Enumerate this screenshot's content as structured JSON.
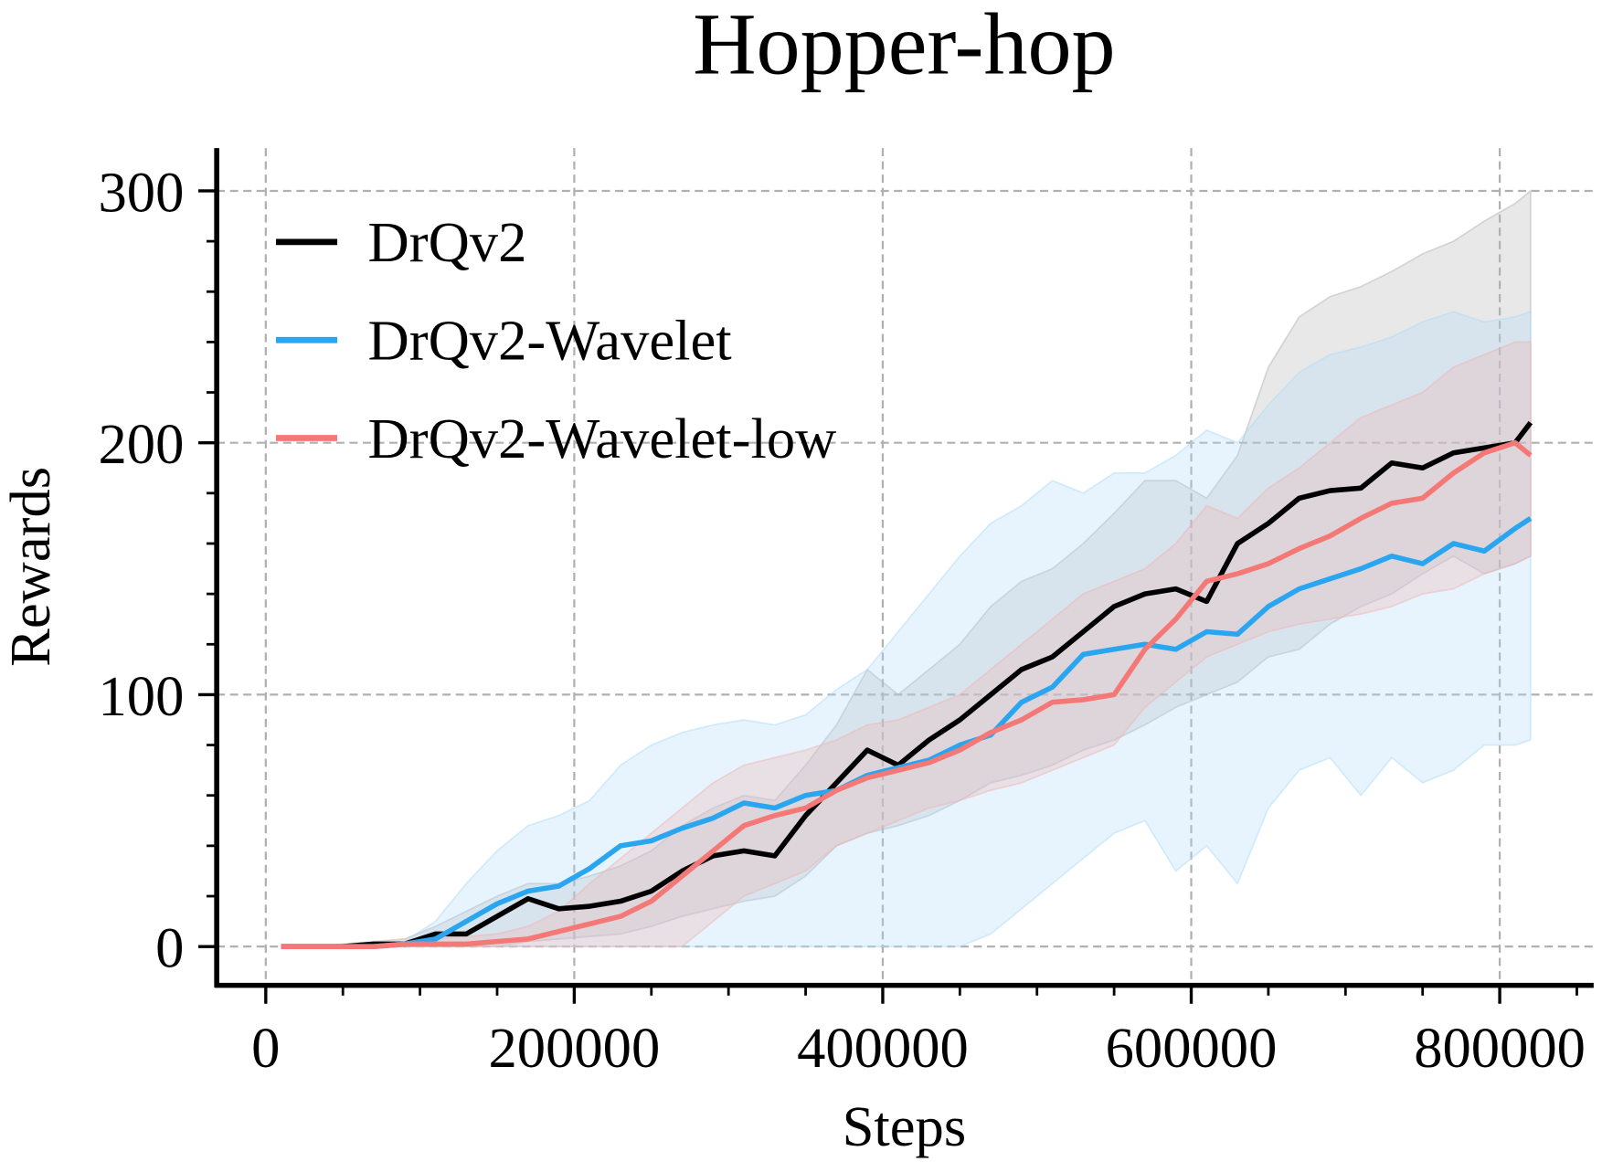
{
  "chart_data": {
    "type": "line",
    "title": "Hopper-hop",
    "x_label": "Steps",
    "y_label": "Rewards",
    "x": [
      10000,
      30000,
      50000,
      70000,
      90000,
      110000,
      130000,
      150000,
      170000,
      190000,
      210000,
      230000,
      250000,
      270000,
      290000,
      310000,
      330000,
      350000,
      370000,
      390000,
      410000,
      430000,
      450000,
      470000,
      490000,
      510000,
      530000,
      550000,
      570000,
      590000,
      610000,
      630000,
      650000,
      670000,
      690000,
      710000,
      730000,
      750000,
      770000,
      790000,
      810000,
      820000
    ],
    "series": [
      {
        "name": "DrQv2",
        "color": "#000000",
        "band_color": "#b4b4b4",
        "values": [
          0,
          0,
          0,
          1,
          1,
          5,
          5,
          12,
          19,
          15,
          16,
          18,
          22,
          30,
          36,
          38,
          36,
          52,
          65,
          78,
          72,
          82,
          90,
          100,
          110,
          115,
          125,
          135,
          140,
          142,
          137,
          160,
          168,
          178,
          181,
          182,
          192,
          190,
          196,
          198,
          200,
          208
        ],
        "band_lower": [
          0,
          0,
          0,
          0,
          0,
          0,
          0,
          0,
          2,
          3,
          4,
          5,
          8,
          12,
          15,
          18,
          20,
          28,
          40,
          45,
          48,
          52,
          58,
          65,
          68,
          72,
          78,
          82,
          88,
          95,
          100,
          105,
          115,
          118,
          128,
          135,
          140,
          148,
          155,
          148,
          152,
          155
        ],
        "band_upper": [
          0,
          0,
          1,
          2,
          3,
          8,
          14,
          20,
          25,
          25,
          28,
          32,
          38,
          48,
          55,
          60,
          58,
          72,
          88,
          110,
          100,
          110,
          120,
          135,
          145,
          150,
          160,
          172,
          185,
          185,
          178,
          195,
          230,
          250,
          258,
          262,
          268,
          275,
          280,
          288,
          295,
          300
        ]
      },
      {
        "name": "DrQv2-Wavelet",
        "color": "#2aa5ef",
        "band_color": "#aedcf8",
        "values": [
          0,
          0,
          0,
          0,
          1,
          3,
          10,
          17,
          22,
          24,
          31,
          40,
          42,
          47,
          51,
          57,
          55,
          60,
          62,
          68,
          71,
          74,
          80,
          84,
          97,
          103,
          116,
          118,
          120,
          118,
          125,
          124,
          135,
          142,
          146,
          150,
          155,
          152,
          160,
          157,
          166,
          170
        ],
        "band_lower": [
          0,
          0,
          0,
          0,
          0,
          0,
          0,
          0,
          0,
          0,
          0,
          0,
          0,
          0,
          0,
          0,
          0,
          0,
          0,
          0,
          0,
          0,
          0,
          5,
          15,
          25,
          35,
          45,
          50,
          30,
          40,
          25,
          55,
          70,
          75,
          60,
          75,
          65,
          70,
          80,
          80,
          82
        ],
        "band_upper": [
          0,
          0,
          0,
          1,
          2,
          10,
          25,
          38,
          48,
          52,
          58,
          72,
          80,
          85,
          88,
          90,
          88,
          92,
          102,
          110,
          125,
          140,
          155,
          168,
          175,
          185,
          180,
          188,
          188,
          195,
          205,
          200,
          215,
          228,
          235,
          238,
          242,
          248,
          252,
          248,
          250,
          252
        ]
      },
      {
        "name": "DrQv2-Wavelet-low",
        "color": "#f47876",
        "band_color": "#f0b4b4",
        "values": [
          0,
          0,
          0,
          0,
          1,
          1,
          1,
          2,
          3,
          6,
          9,
          12,
          18,
          28,
          38,
          48,
          52,
          55,
          62,
          67,
          70,
          73,
          78,
          85,
          90,
          97,
          98,
          100,
          118,
          130,
          145,
          148,
          152,
          158,
          163,
          170,
          176,
          178,
          188,
          196,
          200,
          195
        ],
        "band_lower": [
          0,
          0,
          0,
          0,
          0,
          0,
          0,
          0,
          0,
          0,
          0,
          0,
          0,
          0,
          10,
          20,
          25,
          30,
          40,
          45,
          50,
          55,
          58,
          62,
          65,
          70,
          75,
          80,
          95,
          105,
          115,
          120,
          125,
          128,
          130,
          132,
          135,
          140,
          142,
          148,
          152,
          155
        ],
        "band_upper": [
          0,
          0,
          0,
          0,
          2,
          3,
          4,
          5,
          8,
          14,
          25,
          35,
          45,
          55,
          65,
          72,
          75,
          78,
          82,
          88,
          90,
          95,
          100,
          110,
          120,
          130,
          140,
          145,
          150,
          160,
          175,
          170,
          182,
          190,
          200,
          210,
          215,
          220,
          230,
          235,
          240,
          240
        ]
      }
    ],
    "xlim": [
      -31800,
      860900
    ],
    "ylim": [
      -15.4,
      317
    ],
    "xticks": [
      0,
      200000,
      400000,
      600000,
      800000
    ],
    "yticks": [
      0,
      100,
      200,
      300
    ],
    "xminorticks": [
      50000,
      100000,
      150000,
      250000,
      300000,
      350000,
      450000,
      500000,
      550000,
      650000,
      700000,
      750000,
      850000
    ],
    "yminorticks": [
      20,
      40,
      60,
      80,
      120,
      140,
      160,
      180,
      220,
      240,
      260,
      280
    ],
    "grid": true,
    "legend": "upper left"
  }
}
